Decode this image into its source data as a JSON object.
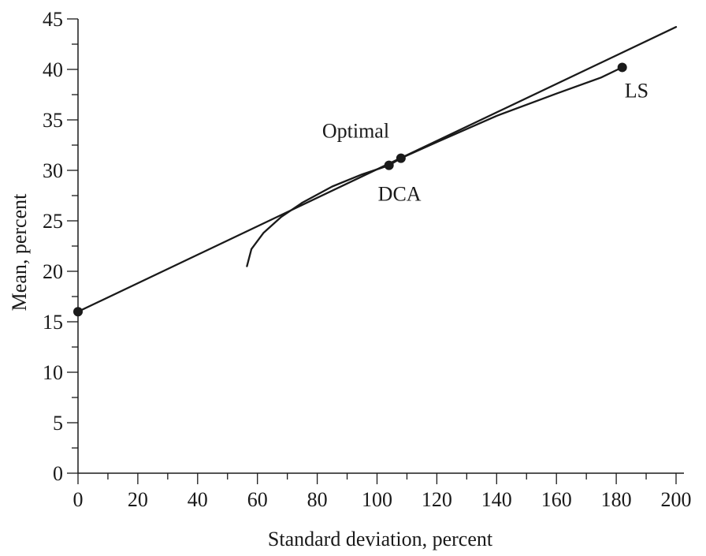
{
  "chart_data": {
    "type": "line",
    "title": "",
    "xlabel": "Standard deviation, percent",
    "ylabel": "Mean, percent",
    "xlim": [
      0,
      200
    ],
    "ylim": [
      0,
      45
    ],
    "x_ticks": [
      0,
      20,
      40,
      60,
      80,
      100,
      120,
      140,
      160,
      180,
      200
    ],
    "y_ticks": [
      0,
      5,
      10,
      15,
      20,
      25,
      30,
      35,
      40,
      45
    ],
    "x_minor_step": 10,
    "y_minor_step": 2.5,
    "grid": false,
    "legend": "none",
    "series": [
      {
        "kind": "line",
        "x": [
          0,
          200
        ],
        "y": [
          16,
          44.2
        ]
      },
      {
        "kind": "curve",
        "x": [
          56.5,
          58,
          62,
          68,
          75,
          85,
          95,
          104,
          108,
          120,
          140,
          160,
          175,
          182
        ],
        "y": [
          20.5,
          22.2,
          23.8,
          25.4,
          26.8,
          28.4,
          29.6,
          30.5,
          31.2,
          32.8,
          35.4,
          37.6,
          39.2,
          40.2
        ]
      }
    ],
    "points": [
      {
        "x": 0,
        "y": 16,
        "label": ""
      },
      {
        "x": 104,
        "y": 30.5,
        "label": "DCA"
      },
      {
        "x": 108,
        "y": 31.2,
        "label": "Optimal"
      },
      {
        "x": 182,
        "y": 40.2,
        "label": "LS"
      }
    ],
    "annotations": [
      {
        "text": "Optimal",
        "x": 108,
        "y": 31.2,
        "anchor": "above-left"
      },
      {
        "text": "DCA",
        "x": 104,
        "y": 30.5,
        "anchor": "below-right"
      },
      {
        "text": "LS",
        "x": 182,
        "y": 40.2,
        "anchor": "below-right"
      }
    ],
    "colors": {
      "line": "#1a1a1a",
      "points": "#1a1a1a"
    }
  }
}
